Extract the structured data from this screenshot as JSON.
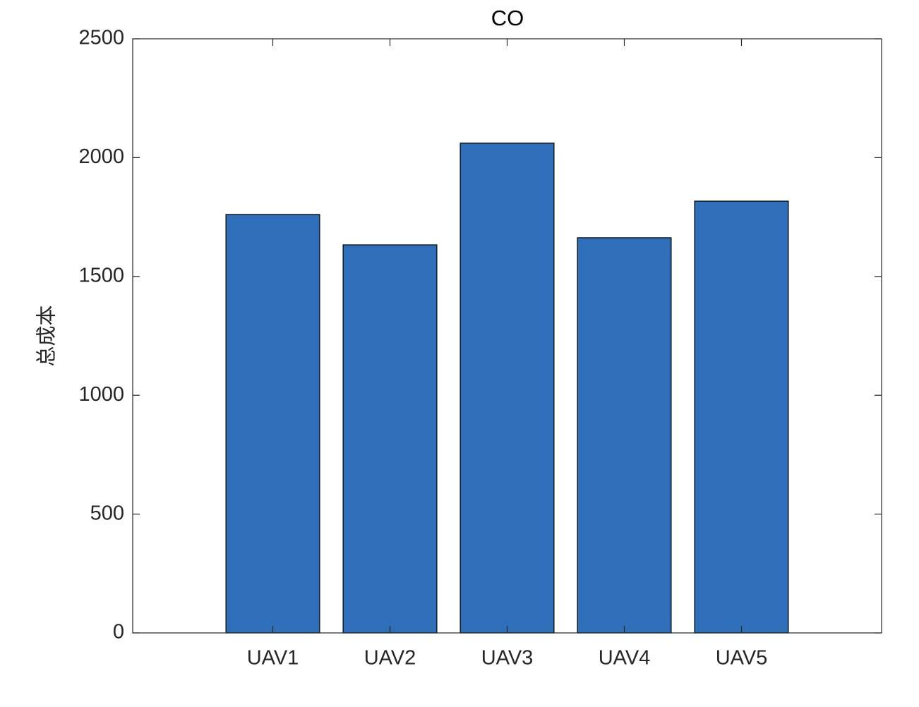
{
  "chart_data": {
    "type": "bar",
    "title": "CO",
    "y_label": "总成本",
    "categories": [
      "UAV1",
      "UAV2",
      "UAV3",
      "UAV4",
      "UAV5"
    ],
    "values": [
      1761,
      1633,
      2061,
      1663,
      1817
    ],
    "color": "#2f6eb8",
    "ylim": [
      0,
      2500
    ],
    "yticks": [
      0,
      500,
      1000,
      1500,
      2000,
      2500
    ]
  }
}
